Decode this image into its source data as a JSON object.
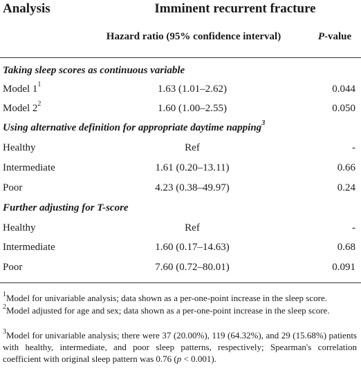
{
  "header": {
    "analysis": "Analysis",
    "group_title": "Imminent recurrent fracture",
    "hr_col": "Hazard ratio (95% confidence interval)",
    "p_col_italic": "P",
    "p_col_rest": "-value"
  },
  "sections": [
    {
      "title": "Taking sleep scores as continuous variable",
      "title_sup": "",
      "rows": [
        {
          "label": "Model 1",
          "sup": "1",
          "hr": "1.63 (1.01–2.62)",
          "p": "0.044"
        },
        {
          "label": "Model 2",
          "sup": "2",
          "hr": "1.60 (1.00–2.55)",
          "p": "0.050"
        }
      ]
    },
    {
      "title": "Using alternative definition for appropriate daytime napping",
      "title_sup": "3",
      "rows": [
        {
          "label": "Healthy",
          "sup": "",
          "hr": "Ref",
          "p": "-"
        },
        {
          "label": "Intermediate",
          "sup": "",
          "hr": "1.61 (0.20–13.11)",
          "p": "0.66"
        },
        {
          "label": "Poor",
          "sup": "",
          "hr": "4.23 (0.38–49.97)",
          "p": "0.24"
        }
      ]
    },
    {
      "title": "Further adjusting for T-score",
      "title_sup": "",
      "rows": [
        {
          "label": "Healthy",
          "sup": "",
          "hr": "Ref",
          "p": "-"
        },
        {
          "label": "Intermediate",
          "sup": "",
          "hr": "1.60 (0.17–14.63)",
          "p": "0.68"
        },
        {
          "label": "Poor",
          "sup": "",
          "hr": "7.60 (0.72–80.01)",
          "p": "0.091"
        }
      ]
    }
  ],
  "footnotes": {
    "fn1_num": "1",
    "fn1": "Model for univariable analysis; data shown as a per-one-point increase in the sleep score.",
    "fn2_num": "2",
    "fn2": "Model adjusted for age and sex; data shown as a per-one-point increase in the sleep score.",
    "fn3_num": "3",
    "fn3_a": "Model for univariable analysis; there were 37 (20.00%), 119 (64.32%), and 29 (15.68%) patients with healthy, intermediate, and poor sleep patterns, respectively; Spearman's correlation coefficient with original sleep pattern was 0.76 (",
    "fn3_p": "p",
    "fn3_b": " < 0.001)."
  }
}
